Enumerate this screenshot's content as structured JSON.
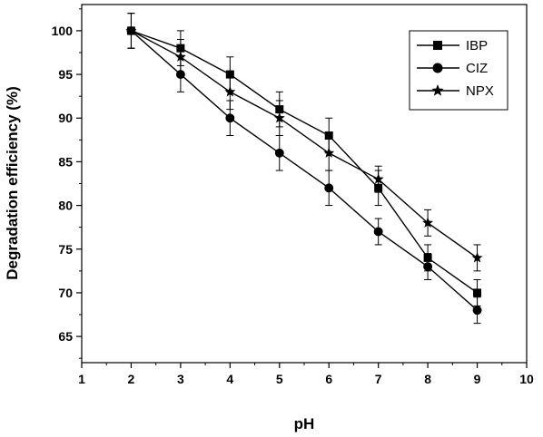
{
  "chart_data": {
    "type": "line",
    "title": "",
    "xlabel": "pH",
    "ylabel": "Degradation efficiency (%)",
    "xlim": [
      1,
      10
    ],
    "ylim": [
      62,
      103
    ],
    "xticks": [
      1,
      2,
      3,
      4,
      5,
      6,
      7,
      8,
      9,
      10
    ],
    "yticks": [
      65,
      70,
      75,
      80,
      85,
      90,
      95,
      100
    ],
    "grid": false,
    "legend_position": "top-right",
    "x": [
      2,
      3,
      4,
      5,
      6,
      7,
      8,
      9
    ],
    "series": [
      {
        "name": "IBP",
        "marker": "square",
        "values": [
          100,
          98,
          95,
          91,
          88,
          82,
          74,
          70
        ],
        "errors": [
          2,
          2,
          2,
          2,
          2,
          2,
          1.5,
          1.5
        ]
      },
      {
        "name": "CIZ",
        "marker": "circle",
        "values": [
          100,
          95,
          90,
          86,
          82,
          77,
          73,
          68
        ],
        "errors": [
          2,
          2,
          2,
          2,
          2,
          1.5,
          1.5,
          1.5
        ]
      },
      {
        "name": "NPX",
        "marker": "star",
        "values": [
          100,
          97,
          93,
          90,
          86,
          83,
          78,
          74
        ],
        "errors": [
          2,
          2,
          2,
          2,
          2,
          1.5,
          1.5,
          1.5
        ]
      }
    ]
  }
}
